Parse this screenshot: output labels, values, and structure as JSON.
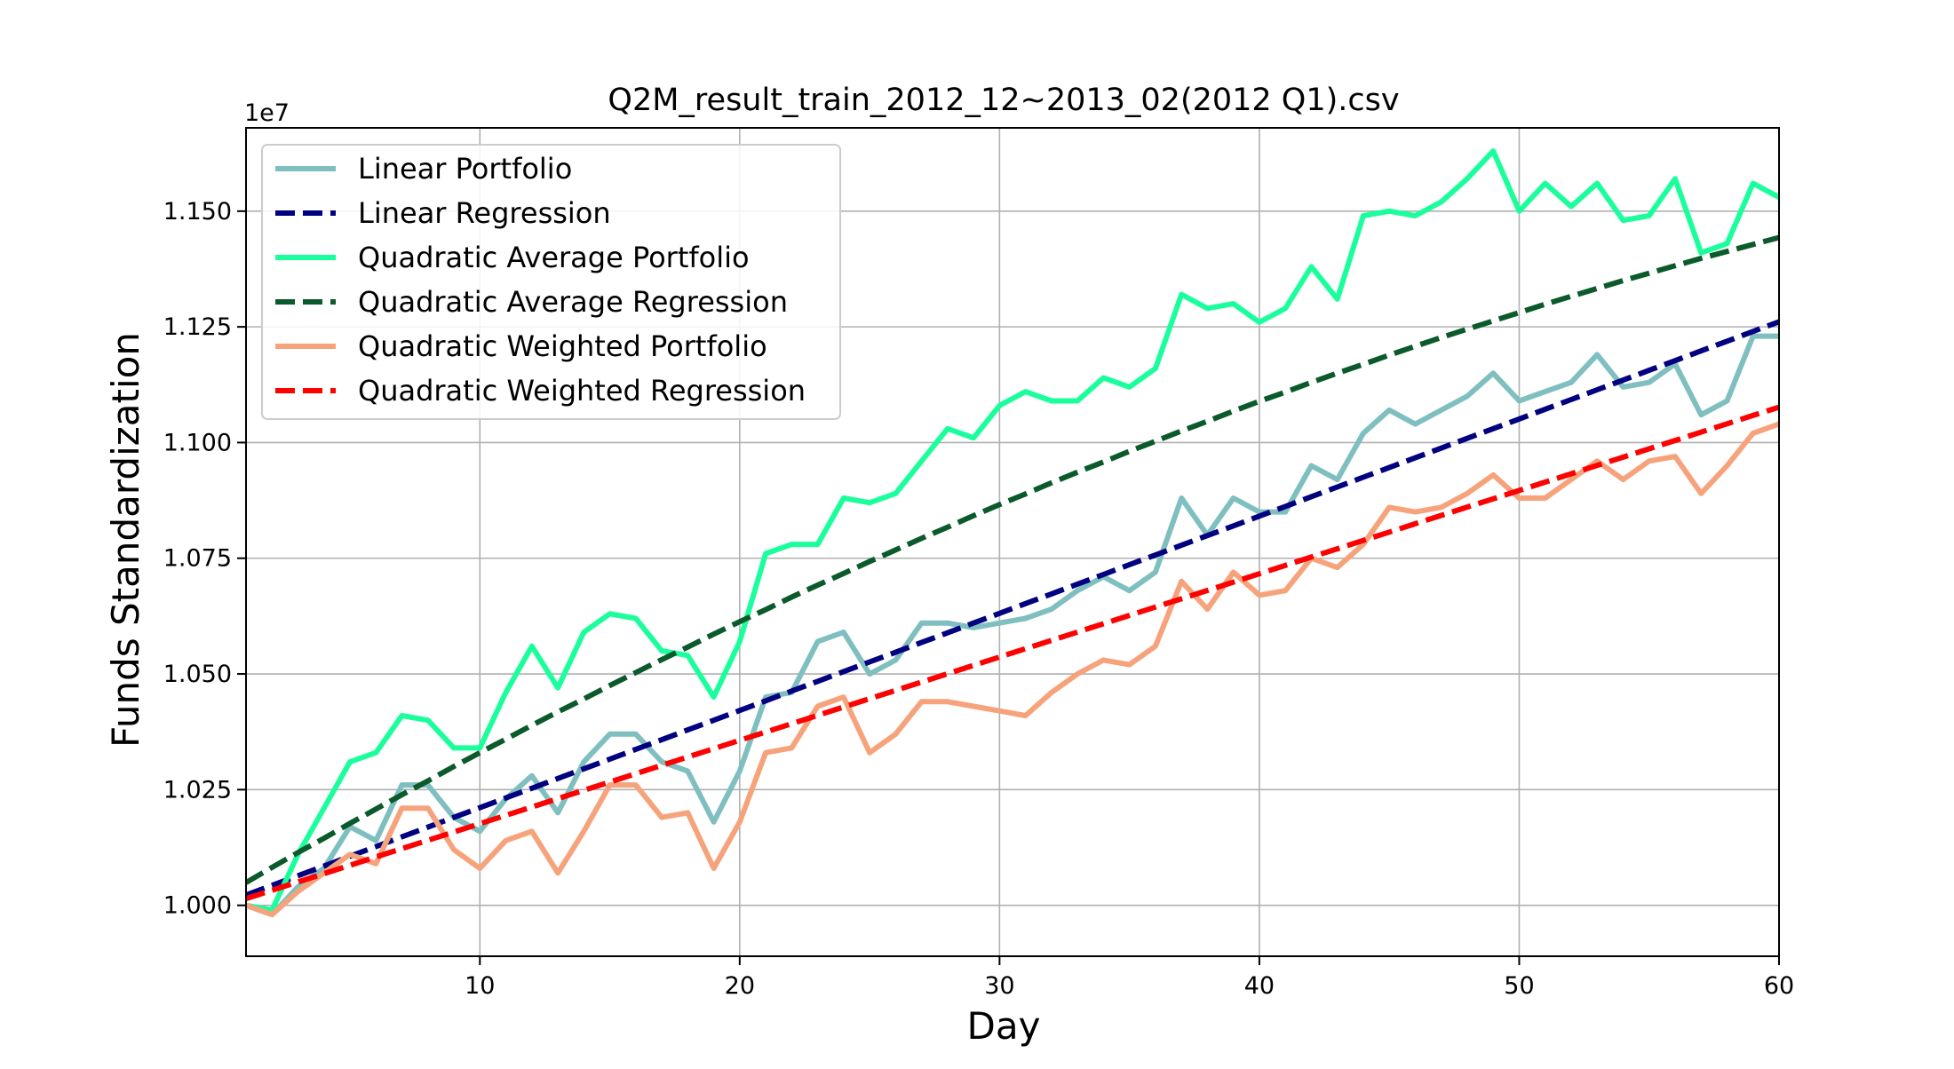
{
  "chart_data": {
    "type": "line",
    "title": "Q2M_result_train_2012_12~2013_02(2012 Q1).csv",
    "xlabel": "Day",
    "ylabel": "Funds Standardization",
    "offset_label": "1e7",
    "xlim": [
      1,
      60
    ],
    "ylim": [
      0.989,
      1.168
    ],
    "x_ticks": [
      10,
      20,
      30,
      40,
      50,
      60
    ],
    "y_ticks": [
      1.0,
      1.025,
      1.05,
      1.075,
      1.1,
      1.125,
      1.15
    ],
    "x_tick_labels": [
      "10",
      "20",
      "30",
      "40",
      "50",
      "60"
    ],
    "y_tick_labels": [
      "1.000",
      "1.025",
      "1.050",
      "1.075",
      "1.100",
      "1.125",
      "1.150"
    ],
    "grid": true,
    "legend_position": "top-left",
    "x": [
      1,
      2,
      3,
      4,
      5,
      6,
      7,
      8,
      9,
      10,
      11,
      12,
      13,
      14,
      15,
      16,
      17,
      18,
      19,
      20,
      21,
      22,
      23,
      24,
      25,
      26,
      27,
      28,
      29,
      30,
      31,
      32,
      33,
      34,
      35,
      36,
      37,
      38,
      39,
      40,
      41,
      42,
      43,
      44,
      45,
      46,
      47,
      48,
      49,
      50,
      51,
      52,
      53,
      54,
      55,
      56,
      57,
      58,
      59,
      60
    ],
    "series": [
      {
        "name": "Linear Portfolio",
        "style": "solid",
        "color": "#7fbfbf",
        "values": [
          1.0,
          0.998,
          1.004,
          1.008,
          1.017,
          1.014,
          1.026,
          1.026,
          1.019,
          1.016,
          1.023,
          1.028,
          1.02,
          1.031,
          1.037,
          1.037,
          1.031,
          1.029,
          1.018,
          1.029,
          1.045,
          1.046,
          1.057,
          1.059,
          1.05,
          1.053,
          1.061,
          1.061,
          1.06,
          1.061,
          1.062,
          1.064,
          1.068,
          1.071,
          1.068,
          1.072,
          1.088,
          1.08,
          1.088,
          1.085,
          1.085,
          1.095,
          1.092,
          1.102,
          1.107,
          1.104,
          1.107,
          1.11,
          1.115,
          1.109,
          1.111,
          1.113,
          1.119,
          1.112,
          1.113,
          1.117,
          1.106,
          1.109,
          1.123,
          1.123
        ]
      },
      {
        "name": "Linear Regression",
        "style": "dashed",
        "color": "#000080",
        "values": [
          1.00221,
          1.00431,
          1.0064,
          1.0085,
          1.0106,
          1.0127,
          1.0148,
          1.0169,
          1.019,
          1.0211,
          1.0232,
          1.0253,
          1.0274,
          1.0295,
          1.0316,
          1.0337,
          1.0358,
          1.0379,
          1.04,
          1.0421,
          1.0442,
          1.0463,
          1.0484,
          1.0505,
          1.0526,
          1.0547,
          1.0568,
          1.0589,
          1.061,
          1.0631,
          1.0652,
          1.0673,
          1.0694,
          1.0715,
          1.0736,
          1.0757,
          1.0778,
          1.0799,
          1.082,
          1.0841,
          1.0862,
          1.0883,
          1.0904,
          1.0925,
          1.0946,
          1.0967,
          1.0988,
          1.1009,
          1.103,
          1.1051,
          1.1072,
          1.1093,
          1.1114,
          1.1135,
          1.1156,
          1.1177,
          1.1198,
          1.1219,
          1.124,
          1.1261
        ]
      },
      {
        "name": "Quadratic Average Portfolio",
        "style": "solid",
        "color": "#1aff9c",
        "values": [
          1.0,
          0.999,
          1.011,
          1.021,
          1.031,
          1.033,
          1.041,
          1.04,
          1.034,
          1.034,
          1.046,
          1.056,
          1.047,
          1.059,
          1.063,
          1.062,
          1.055,
          1.054,
          1.045,
          1.057,
          1.076,
          1.078,
          1.078,
          1.088,
          1.087,
          1.089,
          1.096,
          1.103,
          1.101,
          1.108,
          1.111,
          1.109,
          1.109,
          1.114,
          1.112,
          1.116,
          1.132,
          1.129,
          1.13,
          1.126,
          1.129,
          1.138,
          1.131,
          1.149,
          1.15,
          1.149,
          1.152,
          1.157,
          1.163,
          1.15,
          1.156,
          1.151,
          1.156,
          1.148,
          1.149,
          1.157,
          1.141,
          1.143,
          1.156,
          1.153
        ]
      },
      {
        "name": "Quadratic Average Regression",
        "style": "dashed",
        "color": "#0b5a2b",
        "values": [
          1.0049,
          1.0082,
          1.0114,
          1.0145,
          1.0177,
          1.0208,
          1.0239,
          1.0269,
          1.03,
          1.033,
          1.0359,
          1.0389,
          1.0418,
          1.0446,
          1.0475,
          1.0503,
          1.0531,
          1.0558,
          1.0586,
          1.0613,
          1.0639,
          1.0666,
          1.0692,
          1.0717,
          1.0743,
          1.0768,
          1.0793,
          1.0817,
          1.0842,
          1.0866,
          1.0889,
          1.0913,
          1.0936,
          1.0958,
          1.0981,
          1.1003,
          1.1025,
          1.1046,
          1.1068,
          1.1089,
          1.1109,
          1.113,
          1.115,
          1.1169,
          1.1189,
          1.1208,
          1.1227,
          1.1245,
          1.1263,
          1.1281,
          1.1299,
          1.1316,
          1.1333,
          1.135,
          1.1366,
          1.1382,
          1.1398,
          1.1413,
          1.1428,
          1.1443
        ]
      },
      {
        "name": "Quadratic Weighted Portfolio",
        "style": "solid",
        "color": "#f6a37c",
        "values": [
          1.0,
          0.998,
          1.003,
          1.007,
          1.011,
          1.009,
          1.021,
          1.021,
          1.012,
          1.008,
          1.014,
          1.016,
          1.007,
          1.016,
          1.026,
          1.026,
          1.019,
          1.02,
          1.008,
          1.018,
          1.033,
          1.034,
          1.043,
          1.045,
          1.033,
          1.037,
          1.044,
          1.044,
          1.043,
          1.042,
          1.041,
          1.046,
          1.05,
          1.053,
          1.052,
          1.056,
          1.07,
          1.064,
          1.072,
          1.067,
          1.068,
          1.075,
          1.073,
          1.078,
          1.086,
          1.085,
          1.086,
          1.089,
          1.093,
          1.088,
          1.088,
          1.092,
          1.096,
          1.092,
          1.096,
          1.097,
          1.089,
          1.095,
          1.102,
          1.104
        ]
      },
      {
        "name": "Quadratic Weighted Regression",
        "style": "dashed",
        "color": "#ff0000",
        "values": [
          1.00145,
          1.00325,
          1.00505,
          1.00685,
          1.00865,
          1.01045,
          1.01225,
          1.01405,
          1.01585,
          1.01765,
          1.01945,
          1.02125,
          1.02305,
          1.02485,
          1.02665,
          1.02845,
          1.03025,
          1.03205,
          1.03385,
          1.03565,
          1.03745,
          1.03925,
          1.04105,
          1.04285,
          1.04465,
          1.04645,
          1.04825,
          1.05005,
          1.05185,
          1.05365,
          1.05545,
          1.05725,
          1.05905,
          1.06085,
          1.06265,
          1.06445,
          1.06625,
          1.06805,
          1.06985,
          1.07165,
          1.07345,
          1.07525,
          1.07705,
          1.07885,
          1.08065,
          1.08245,
          1.08425,
          1.08605,
          1.08785,
          1.08965,
          1.09145,
          1.09325,
          1.09505,
          1.09685,
          1.09865,
          1.10045,
          1.10225,
          1.10405,
          1.10585,
          1.10765
        ]
      }
    ]
  }
}
